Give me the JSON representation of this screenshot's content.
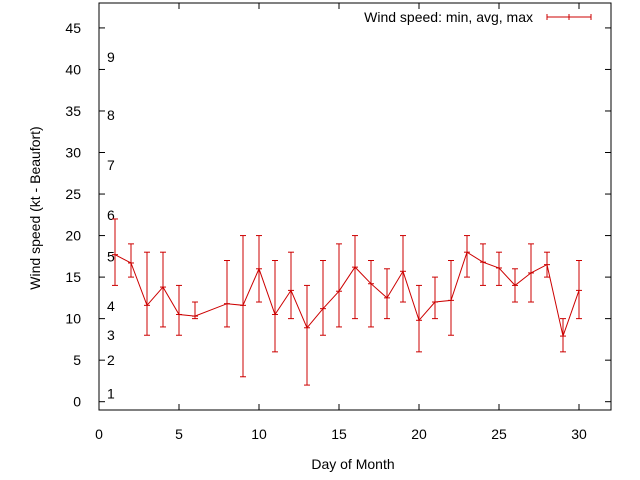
{
  "chart_data": {
    "type": "line",
    "title": "",
    "xlabel": "Day of Month",
    "ylabel": "Wind speed (kt - Beaufort)",
    "xlim": [
      0,
      32
    ],
    "ylim": [
      -1,
      48
    ],
    "x_ticks": [
      0,
      5,
      10,
      15,
      20,
      25,
      30
    ],
    "y_ticks": [
      0,
      5,
      10,
      15,
      20,
      25,
      30,
      35,
      40,
      45
    ],
    "grid": false,
    "legend_position": "top-right",
    "beaufort_labels": [
      {
        "y": 1,
        "label": "1"
      },
      {
        "y": 5,
        "label": "2"
      },
      {
        "y": 8,
        "label": "3"
      },
      {
        "y": 11.5,
        "label": "4"
      },
      {
        "y": 17.5,
        "label": "5"
      },
      {
        "y": 22.5,
        "label": "6"
      },
      {
        "y": 28.5,
        "label": "7"
      },
      {
        "y": 34.5,
        "label": "8"
      },
      {
        "y": 41.5,
        "label": "9"
      }
    ],
    "series": [
      {
        "name": "Wind speed: min, avg, max",
        "color": "#cc0000",
        "points": [
          {
            "x": 1,
            "min": 14,
            "avg": 17.7,
            "max": 22
          },
          {
            "x": 2,
            "min": 15,
            "avg": 16.7,
            "max": 19
          },
          {
            "x": 3,
            "min": 8,
            "avg": 11.6,
            "max": 18
          },
          {
            "x": 4,
            "min": 9,
            "avg": 13.8,
            "max": 18
          },
          {
            "x": 5,
            "min": 8,
            "avg": 10.5,
            "max": 14
          },
          {
            "x": 6,
            "min": 10,
            "avg": 10.3,
            "max": 12
          },
          {
            "x": 8,
            "min": 9,
            "avg": 11.8,
            "max": 17
          },
          {
            "x": 9,
            "min": 3,
            "avg": 11.6,
            "max": 20
          },
          {
            "x": 10,
            "min": 12,
            "avg": 16,
            "max": 20
          },
          {
            "x": 11,
            "min": 6,
            "avg": 10.5,
            "max": 17
          },
          {
            "x": 12,
            "min": 10,
            "avg": 13.4,
            "max": 18
          },
          {
            "x": 13,
            "min": 2,
            "avg": 8.9,
            "max": 14
          },
          {
            "x": 14,
            "min": 8,
            "avg": 11.2,
            "max": 17
          },
          {
            "x": 15,
            "min": 9,
            "avg": 13.3,
            "max": 19
          },
          {
            "x": 16,
            "min": 10,
            "avg": 16.2,
            "max": 20
          },
          {
            "x": 17,
            "min": 9,
            "avg": 14.2,
            "max": 17
          },
          {
            "x": 18,
            "min": 10,
            "avg": 12.5,
            "max": 16
          },
          {
            "x": 19,
            "min": 12,
            "avg": 15.7,
            "max": 20
          },
          {
            "x": 20,
            "min": 6,
            "avg": 9.8,
            "max": 14
          },
          {
            "x": 21,
            "min": 10,
            "avg": 12,
            "max": 15
          },
          {
            "x": 22,
            "min": 8,
            "avg": 12.2,
            "max": 17
          },
          {
            "x": 23,
            "min": 15,
            "avg": 18,
            "max": 20
          },
          {
            "x": 24,
            "min": 14,
            "avg": 16.8,
            "max": 19
          },
          {
            "x": 25,
            "min": 14,
            "avg": 16.1,
            "max": 18
          },
          {
            "x": 26,
            "min": 12,
            "avg": 14,
            "max": 16
          },
          {
            "x": 27,
            "min": 12,
            "avg": 15.5,
            "max": 19
          },
          {
            "x": 28,
            "min": 15,
            "avg": 16.5,
            "max": 18
          },
          {
            "x": 29,
            "min": 6,
            "avg": 7.9,
            "max": 10
          },
          {
            "x": 30,
            "min": 10,
            "avg": 13.4,
            "max": 17
          }
        ]
      }
    ]
  }
}
